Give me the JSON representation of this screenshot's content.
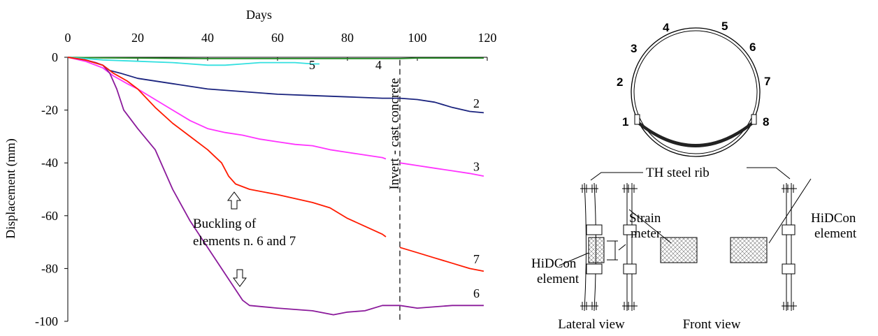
{
  "chart_data": {
    "type": "line",
    "xlabel": "Days",
    "ylabel": "Displacement (mm)",
    "xlim": [
      0,
      120
    ],
    "ylim": [
      -100,
      0
    ],
    "x_ticks": [
      0,
      20,
      40,
      60,
      80,
      100,
      120
    ],
    "y_ticks": [
      0,
      -20,
      -40,
      -60,
      -80,
      -100
    ],
    "x_tick_labels": [
      "0",
      "20",
      "40",
      "60",
      "80",
      "100",
      "120"
    ],
    "y_tick_labels": [
      "0",
      "-20",
      "-40",
      "-60",
      "-80",
      "-100"
    ],
    "x_axis_position": "top",
    "grid": false,
    "vertical_marker": {
      "x": 95,
      "label": "Invert - cast concrete"
    },
    "annotation": "Buckling of\nelements n. 6 and 7",
    "series": [
      {
        "name": "2",
        "color": "#1a237e",
        "points": [
          [
            0,
            0
          ],
          [
            5,
            -1
          ],
          [
            10,
            -3
          ],
          [
            12,
            -5
          ],
          [
            15,
            -6
          ],
          [
            20,
            -8
          ],
          [
            30,
            -10
          ],
          [
            40,
            -12
          ],
          [
            50,
            -13
          ],
          [
            60,
            -14
          ],
          [
            70,
            -14.5
          ],
          [
            80,
            -15
          ],
          [
            90,
            -15.5
          ],
          [
            95,
            -15.5
          ],
          [
            100,
            -16
          ],
          [
            105,
            -17
          ],
          [
            110,
            -19
          ],
          [
            115,
            -20.5
          ],
          [
            119,
            -21
          ]
        ]
      },
      {
        "name": "3",
        "color": "#ff33ff",
        "points": [
          [
            0,
            0
          ],
          [
            5,
            -1.5
          ],
          [
            10,
            -4
          ],
          [
            13,
            -7
          ],
          [
            17,
            -10
          ],
          [
            20,
            -12
          ],
          [
            25,
            -16
          ],
          [
            30,
            -20
          ],
          [
            35,
            -24
          ],
          [
            40,
            -27
          ],
          [
            45,
            -28.5
          ],
          [
            50,
            -29.5
          ],
          [
            55,
            -31
          ],
          [
            60,
            -32
          ],
          [
            65,
            -33
          ],
          [
            70,
            -33.5
          ],
          [
            75,
            -35
          ],
          [
            80,
            -36
          ],
          [
            85,
            -37
          ],
          [
            90,
            -38
          ],
          [
            91,
            -38.5
          ],
          [
            null,
            null
          ],
          [
            95,
            -40
          ],
          [
            100,
            -41
          ],
          [
            105,
            -42
          ],
          [
            110,
            -43
          ],
          [
            115,
            -44
          ],
          [
            119,
            -45
          ]
        ]
      },
      {
        "name": "4",
        "color": "#228b22",
        "points": [
          [
            0,
            0
          ],
          [
            10,
            -0.2
          ],
          [
            20,
            -0.3
          ],
          [
            40,
            -0.5
          ],
          [
            60,
            -0.5
          ],
          [
            80,
            -0.5
          ],
          [
            95,
            -0.5
          ],
          [
            100,
            -0.3
          ],
          [
            110,
            -0.3
          ],
          [
            119,
            -0.3
          ]
        ]
      },
      {
        "name": "5",
        "color": "#33e0e0",
        "points": [
          [
            0,
            0
          ],
          [
            5,
            -0.5
          ],
          [
            10,
            -1
          ],
          [
            20,
            -1.5
          ],
          [
            30,
            -2
          ],
          [
            40,
            -3
          ],
          [
            45,
            -3
          ],
          [
            50,
            -2.5
          ],
          [
            55,
            -2
          ],
          [
            60,
            -2
          ],
          [
            65,
            -2
          ],
          [
            70,
            -2.5
          ],
          [
            72,
            -2.5
          ]
        ]
      },
      {
        "name": "6",
        "color": "#8b1a9b",
        "points": [
          [
            0,
            0
          ],
          [
            5,
            -1
          ],
          [
            8,
            -2
          ],
          [
            10,
            -3
          ],
          [
            12,
            -6
          ],
          [
            14,
            -12
          ],
          [
            16,
            -20
          ],
          [
            20,
            -27
          ],
          [
            25,
            -35
          ],
          [
            30,
            -50
          ],
          [
            35,
            -62
          ],
          [
            40,
            -72
          ],
          [
            45,
            -82
          ],
          [
            48,
            -88
          ],
          [
            50,
            -92
          ],
          [
            52,
            -94
          ],
          [
            60,
            -95
          ],
          [
            70,
            -96
          ],
          [
            76,
            -97.5
          ],
          [
            80,
            -96.5
          ],
          [
            85,
            -96
          ],
          [
            90,
            -94
          ],
          [
            95,
            -94
          ],
          [
            100,
            -95
          ],
          [
            110,
            -94
          ],
          [
            119,
            -94
          ]
        ]
      },
      {
        "name": "7",
        "color": "#ff1a00",
        "points": [
          [
            0,
            0
          ],
          [
            5,
            -1
          ],
          [
            10,
            -3
          ],
          [
            13,
            -6
          ],
          [
            17,
            -9
          ],
          [
            20,
            -12
          ],
          [
            25,
            -19
          ],
          [
            30,
            -25
          ],
          [
            35,
            -30
          ],
          [
            40,
            -35
          ],
          [
            44,
            -40
          ],
          [
            46,
            -45
          ],
          [
            48,
            -48
          ],
          [
            52,
            -50
          ],
          [
            60,
            -52
          ],
          [
            70,
            -55
          ],
          [
            75,
            -57
          ],
          [
            80,
            -61
          ],
          [
            85,
            -64
          ],
          [
            90,
            -67
          ],
          [
            91,
            -68
          ],
          [
            null,
            null
          ],
          [
            95,
            -72
          ],
          [
            100,
            -74
          ],
          [
            105,
            -76
          ],
          [
            110,
            -78
          ],
          [
            115,
            -80
          ],
          [
            119,
            -81
          ]
        ]
      }
    ],
    "series_labels": [
      {
        "text": "2",
        "x": 116,
        "y": -19
      },
      {
        "text": "3",
        "x": 116,
        "y": -43
      },
      {
        "text": "4",
        "x": 88,
        "y": -4.5
      },
      {
        "text": "5",
        "x": 69,
        "y": -4.5
      },
      {
        "text": "6",
        "x": 116,
        "y": -91
      },
      {
        "text": "7",
        "x": 116,
        "y": -78
      }
    ]
  },
  "section": {
    "element_numbers": [
      "1",
      "2",
      "3",
      "4",
      "5",
      "6",
      "7",
      "8"
    ]
  },
  "details": {
    "rib_label": "TH steel rib",
    "strain_meter_line1": "Strain",
    "strain_meter_line2": "meter",
    "hidcon_line1": "HiDCon",
    "hidcon_line2": "element",
    "lateral_view": "Lateral view",
    "front_view": "Front view"
  }
}
